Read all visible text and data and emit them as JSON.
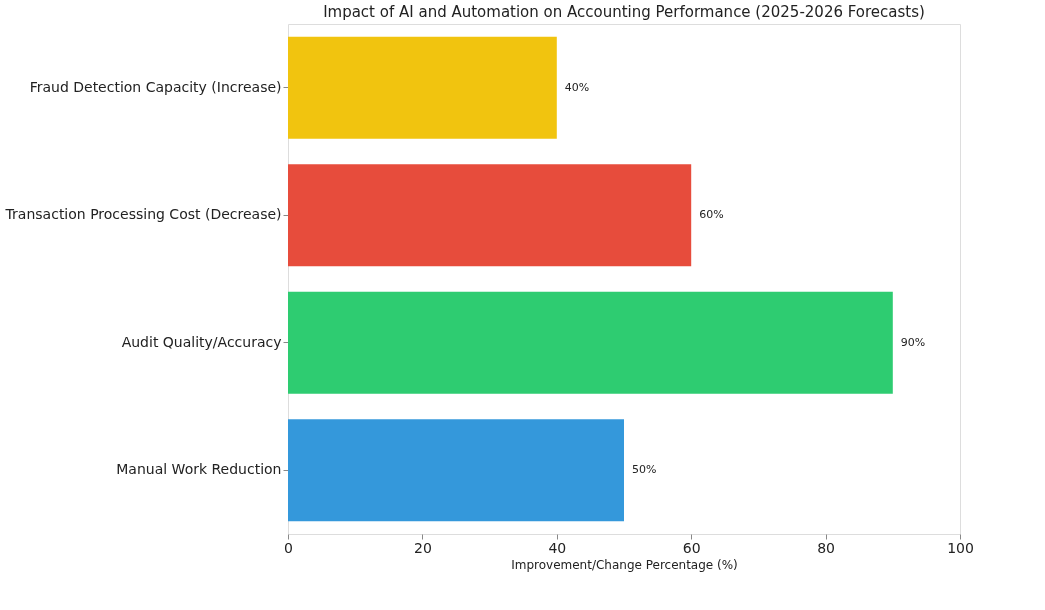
{
  "chart_data": {
    "type": "bar",
    "orientation": "horizontal",
    "title": "Impact of AI and Automation on Accounting Performance (2025-2026 Forecasts)",
    "xlabel": "Improvement/Change Percentage (%)",
    "categories": [
      "Fraud Detection Capacity (Increase)",
      "Transaction Processing Cost (Decrease)",
      "Audit Quality/Accuracy",
      "Manual Work Reduction"
    ],
    "values": [
      40,
      60,
      90,
      50
    ],
    "colors": [
      "#f1c40f",
      "#e74c3c",
      "#2ecc71",
      "#3498db"
    ],
    "value_labels": [
      "40%",
      "60%",
      "90%",
      "50%"
    ],
    "xlim": [
      0,
      100
    ],
    "xticks": [
      0,
      20,
      40,
      60,
      80,
      100
    ],
    "grid": false
  }
}
